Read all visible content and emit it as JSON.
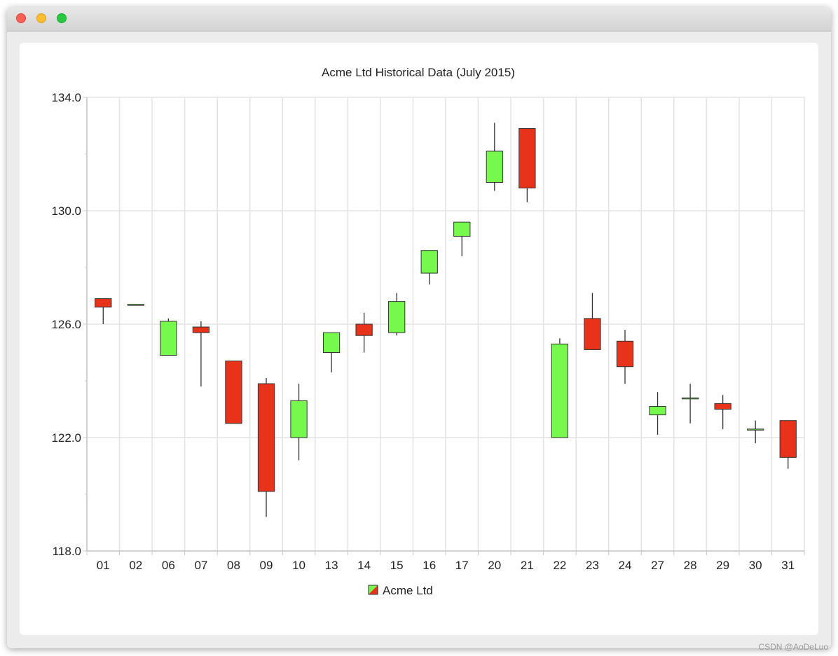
{
  "window": {
    "controls": [
      "close-button",
      "minimize-button",
      "zoom-button"
    ]
  },
  "watermark": "CSDN @AoDeLuo",
  "colors": {
    "increasing": "#76f94c",
    "decreasing": "#e8321a",
    "outline": "#333333",
    "grid": "#e3e3e3",
    "axis": "#c8c8c8"
  },
  "chart_data": {
    "type": "candlestick",
    "title": "Acme Ltd Historical Data (July 2015)",
    "xlabel": "",
    "ylabel": "",
    "ylim": [
      118.0,
      134.0
    ],
    "yticks": [
      "118.0",
      "122.0",
      "126.0",
      "130.0",
      "134.0"
    ],
    "ytick_values": [
      118,
      122,
      126,
      130,
      134
    ],
    "legend": {
      "label": "Acme Ltd",
      "position": "bottom"
    },
    "grid": true,
    "categories": [
      "01",
      "02",
      "06",
      "07",
      "08",
      "09",
      "10",
      "13",
      "14",
      "15",
      "16",
      "17",
      "20",
      "21",
      "22",
      "23",
      "24",
      "27",
      "28",
      "29",
      "30",
      "31"
    ],
    "series": [
      {
        "name": "Acme Ltd",
        "open": [
          126.9,
          126.7,
          124.9,
          125.9,
          124.7,
          123.9,
          122.0,
          125.0,
          126.0,
          125.7,
          127.8,
          129.1,
          131.0,
          132.9,
          122.0,
          126.2,
          125.4,
          122.8,
          123.4,
          123.2,
          122.3,
          122.6
        ],
        "high": [
          126.9,
          126.7,
          126.2,
          126.1,
          124.7,
          124.1,
          123.9,
          125.7,
          126.4,
          127.1,
          128.6,
          129.6,
          133.1,
          132.9,
          125.5,
          127.1,
          125.8,
          123.6,
          123.9,
          123.5,
          122.6,
          122.6
        ],
        "low": [
          126.0,
          126.7,
          124.9,
          123.8,
          122.5,
          119.2,
          121.2,
          124.3,
          125.0,
          125.6,
          127.4,
          128.4,
          130.7,
          130.3,
          122.0,
          125.1,
          123.9,
          122.1,
          122.5,
          122.3,
          121.8,
          120.9
        ],
        "close": [
          126.6,
          126.7,
          126.1,
          125.7,
          122.5,
          120.1,
          123.3,
          125.7,
          125.6,
          126.8,
          128.6,
          129.6,
          132.1,
          130.8,
          125.3,
          125.1,
          124.5,
          123.1,
          123.4,
          123.0,
          122.3,
          121.3
        ]
      }
    ]
  }
}
